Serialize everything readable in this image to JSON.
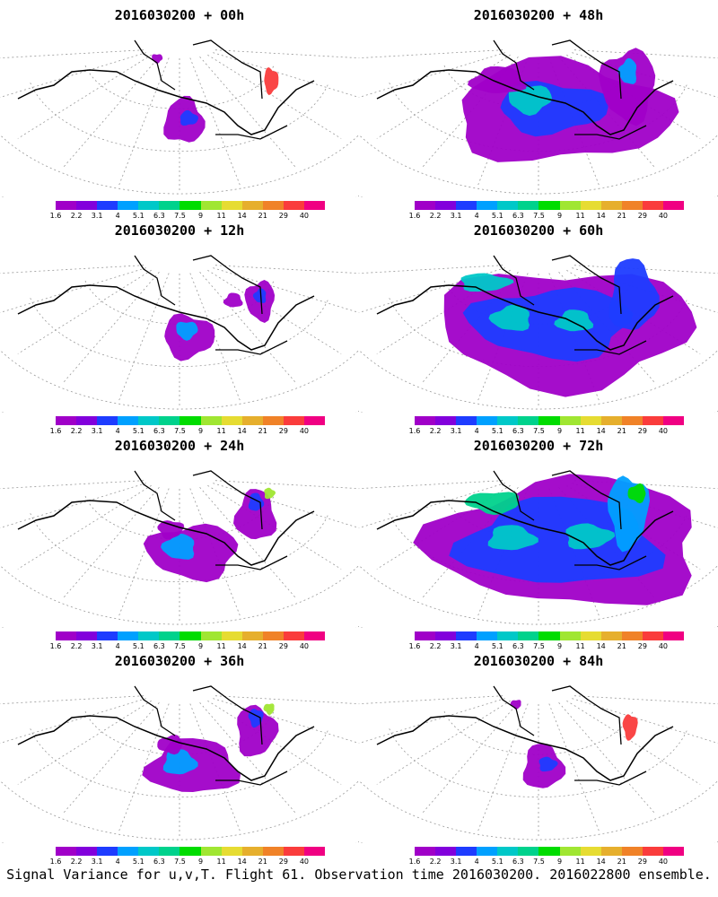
{
  "colorbar": {
    "labels": [
      "1.6",
      "2.2",
      "3.1",
      "4",
      "5.1",
      "6.3",
      "7.5",
      "9",
      "11",
      "14",
      "21",
      "29",
      "40"
    ],
    "colors": [
      "#a000c8",
      "#8200dc",
      "#1e3cff",
      "#00a0ff",
      "#00c8c8",
      "#00d28c",
      "#00dc00",
      "#a0e632",
      "#e6dc32",
      "#e6af2d",
      "#f08228",
      "#fa3c3c",
      "#f00082"
    ]
  },
  "panels": [
    {
      "title": "2016030200 + 00h",
      "level": 0
    },
    {
      "title": "2016030200 + 48h",
      "level": 3
    },
    {
      "title": "2016030200 + 12h",
      "level": 1
    },
    {
      "title": "2016030200 + 60h",
      "level": 4
    },
    {
      "title": "2016030200 + 24h",
      "level": 2
    },
    {
      "title": "2016030200 + 72h",
      "level": 5
    },
    {
      "title": "2016030200 + 36h",
      "level": 2
    },
    {
      "title": "2016030200 + 84h",
      "level": 6
    }
  ],
  "footer": "Signal Variance for u,v,T. Flight 61. Observation time 2016030200. 2016022800 ensemble."
}
